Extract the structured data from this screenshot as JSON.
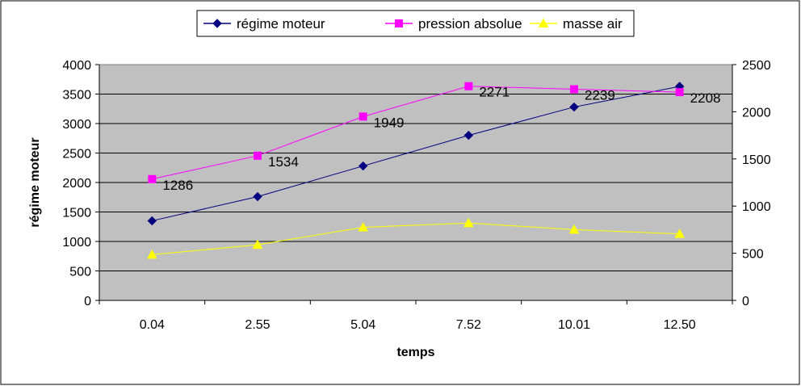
{
  "chart_data": {
    "type": "line",
    "title": "",
    "xlabel": "temps",
    "ylabel": "régime moteur",
    "y2label": "",
    "categories": [
      "0.04",
      "2.55",
      "5.04",
      "7.52",
      "10.01",
      "12.50"
    ],
    "ylim": [
      0,
      4000
    ],
    "yticks": [
      0,
      500,
      1000,
      1500,
      2000,
      2500,
      3000,
      3500,
      4000
    ],
    "y2lim": [
      0,
      2500
    ],
    "y2ticks": [
      0,
      500,
      1000,
      1500,
      2000,
      2500
    ],
    "grid": true,
    "legend_position": "top",
    "plot_background": "#c0c0c0",
    "series": [
      {
        "name": "régime moteur",
        "axis": "left",
        "color": "#000080",
        "marker": "diamond",
        "values": [
          1350,
          1760,
          2280,
          2800,
          3280,
          3630
        ],
        "show_labels": false
      },
      {
        "name": "pression absolue",
        "axis": "right",
        "color": "#ff00ff",
        "marker": "square",
        "values": [
          1286,
          1534,
          1949,
          2271,
          2239,
          2208
        ],
        "data_labels": [
          "1286",
          "1534",
          "1949",
          "2271",
          "2239",
          "2208"
        ],
        "show_labels": true
      },
      {
        "name": "masse air",
        "axis": "right",
        "color": "#ffff00",
        "marker": "triangle",
        "values": [
          485,
          590,
          775,
          820,
          750,
          705
        ],
        "show_labels": false
      }
    ]
  }
}
